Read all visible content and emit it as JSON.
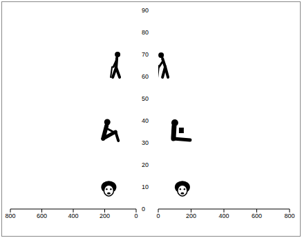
{
  "chart_data": [
    {
      "type": "scatter",
      "xlim": [
        800,
        0
      ],
      "xticks": [
        800,
        600,
        400,
        200,
        0
      ],
      "ylim": [
        0,
        90
      ],
      "yticks": [
        0,
        10,
        20,
        30,
        40,
        50,
        60,
        70,
        80,
        90
      ],
      "grid": false,
      "color": "#000000",
      "series": [
        {
          "marker": "walking",
          "x": [
            127
          ],
          "values": [
            65
          ]
        },
        {
          "marker": "sitting",
          "x": [
            166
          ],
          "values": [
            35
          ]
        },
        {
          "marker": "face",
          "x": [
            174
          ],
          "values": [
            9
          ]
        }
      ]
    },
    {
      "type": "scatter",
      "xlim": [
        0,
        800
      ],
      "xticks": [
        0,
        200,
        400,
        600,
        800
      ],
      "ylim": [
        0,
        90
      ],
      "yticks": [
        0,
        10,
        20,
        30,
        40,
        50,
        60,
        70,
        80,
        90
      ],
      "tick_labels": "x",
      "grid": false,
      "color": "#000000",
      "series": [
        {
          "marker": "walking_cane",
          "x": [
            30
          ],
          "values": [
            65
          ]
        },
        {
          "marker": "sitting_reading",
          "x": [
            126
          ],
          "values": [
            35
          ]
        },
        {
          "marker": "face",
          "x": [
            147
          ],
          "values": [
            9
          ]
        }
      ]
    }
  ]
}
